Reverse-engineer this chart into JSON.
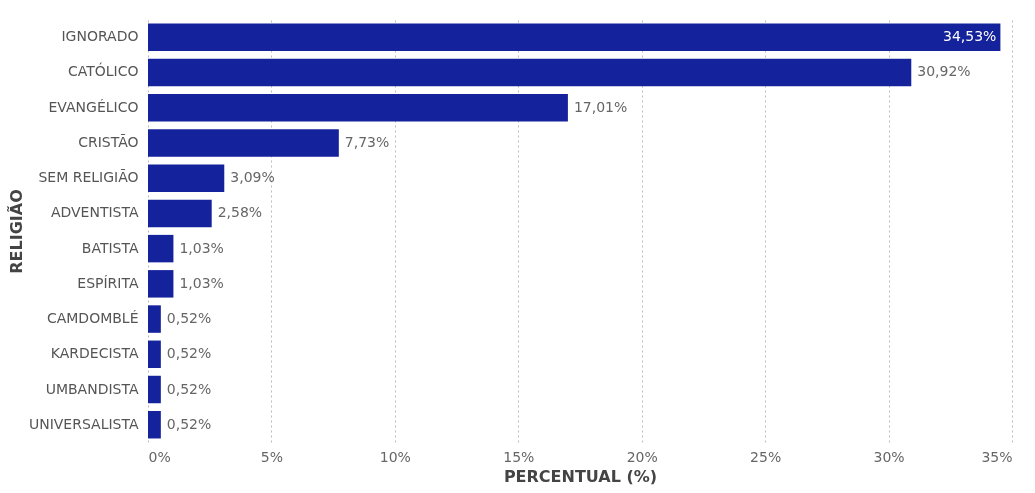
{
  "chart_data": {
    "type": "bar",
    "orientation": "horizontal",
    "xlabel": "PERCENTUAL (%)",
    "ylabel": "RELIGIÃO",
    "categories": [
      "IGNORADO",
      "CATÓLICO",
      "EVANGÉLICO",
      "CRISTÃO",
      "SEM RELIGIÃO",
      "ADVENTISTA",
      "BATISTA",
      "ESPÍRITA",
      "CAMDOMBLÉ",
      "KARDECISTA",
      "UMBANDISTA",
      "UNIVERSALISTA"
    ],
    "values": [
      34.53,
      30.92,
      17.01,
      7.73,
      3.09,
      2.58,
      1.03,
      1.03,
      0.52,
      0.52,
      0.52,
      0.52
    ],
    "value_labels": [
      "34,53%",
      "30,92%",
      "17,01%",
      "7,73%",
      "3,09%",
      "2,58%",
      "1,03%",
      "1,03%",
      "0,52%",
      "0,52%",
      "0,52%",
      "0,52%"
    ],
    "color": "#14229b",
    "xlim": [
      0,
      35
    ],
    "xticks": [
      {
        "value": 0,
        "label": "0%"
      },
      {
        "value": 5,
        "label": "5%"
      },
      {
        "value": 10,
        "label": "10%"
      },
      {
        "value": 15,
        "label": "15%"
      },
      {
        "value": 20,
        "label": "20%"
      },
      {
        "value": 25,
        "label": "25%"
      },
      {
        "value": 30,
        "label": "30%"
      },
      {
        "value": 35,
        "label": "35%"
      }
    ],
    "grid": "x"
  }
}
